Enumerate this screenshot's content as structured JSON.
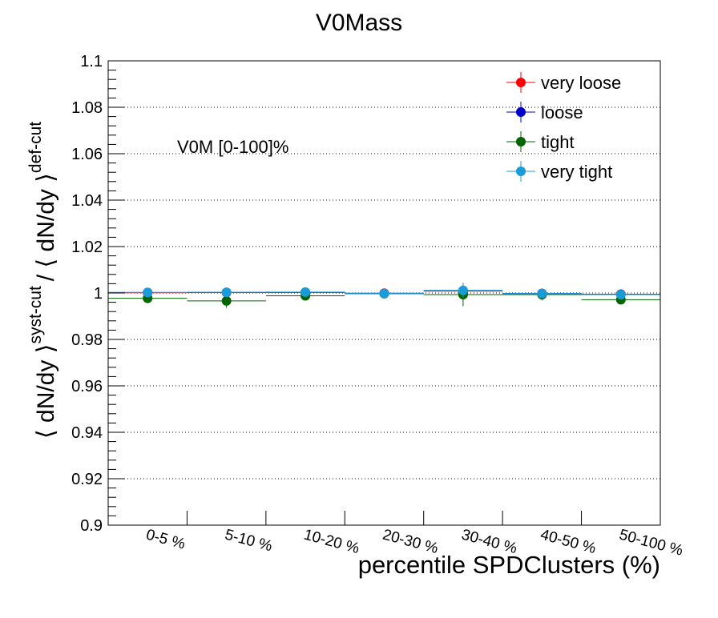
{
  "chart_data": {
    "type": "scatter",
    "title": "V0Mass",
    "xlabel": "percentile SPDClusters (%)",
    "ylabel_parts": [
      "⟨ dN/dy ⟩",
      "syst-cut",
      "/ ⟨ dN/dy ⟩",
      "def-cut"
    ],
    "annotation": "V0M [0-100]%",
    "categories": [
      "0-5 %",
      "5-10 %",
      "10-20 %",
      "20-30 %",
      "30-40 %",
      "40-50 %",
      "50-100 %"
    ],
    "ylim": [
      0.9,
      1.1
    ],
    "yticks": [
      "0.9",
      "0.92",
      "0.94",
      "0.96",
      "0.98",
      "1",
      "1.02",
      "1.04",
      "1.06",
      "1.08",
      "1.1"
    ],
    "grid": "horizontal",
    "legend_position": "top-right",
    "series": [
      {
        "name": "very loose",
        "color": "#ff0000",
        "values": [
          1.0001,
          1.0002,
          1.0002,
          0.9999,
          1.0008,
          0.9998,
          0.9995
        ],
        "errors": [
          0.001,
          0.001,
          0.001,
          0.001,
          0.001,
          0.001,
          0.001
        ]
      },
      {
        "name": "loose",
        "color": "#0000cc",
        "values": [
          1.0002,
          1.0002,
          1.0003,
          0.9998,
          1.001,
          0.9998,
          0.9994
        ],
        "errors": [
          0.001,
          0.001,
          0.001,
          0.001,
          0.001,
          0.001,
          0.001
        ]
      },
      {
        "name": "tight",
        "color": "#006400",
        "values": [
          0.9977,
          0.9966,
          0.9988,
          0.9997,
          0.9993,
          0.9993,
          0.9971
        ],
        "errors": [
          0.0015,
          0.003,
          0.0015,
          0.002,
          0.005,
          0.0025,
          0.0015
        ]
      },
      {
        "name": "very tight",
        "color": "#1a9cd8",
        "values": [
          1.0002,
          1.0003,
          1.0004,
          0.9998,
          1.0011,
          0.9998,
          0.9993
        ],
        "errors": [
          0.001,
          0.002,
          0.001,
          0.001,
          0.003,
          0.002,
          0.002
        ]
      }
    ]
  }
}
